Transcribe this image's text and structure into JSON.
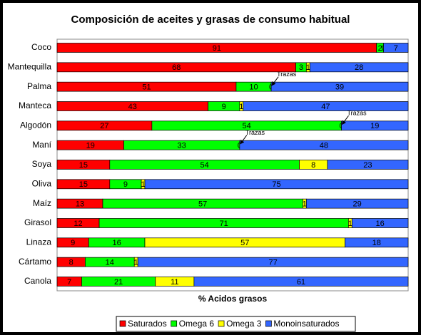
{
  "chart_data": {
    "type": "stacked-bar-horizontal",
    "title": "Composición de aceites y grasas de consumo habitual",
    "x_label": "% Acidos grasos",
    "categories": [
      "Coco",
      "Mantequilla",
      "Palma",
      "Manteca",
      "Algodón",
      "Maní",
      "Soya",
      "Oliva",
      "Maíz",
      "Girasol",
      "Linaza",
      "Cártamo",
      "Canola"
    ],
    "series": [
      {
        "name": "Saturados",
        "color": "#ff0000",
        "values": [
          91,
          68,
          51,
          43,
          27,
          19,
          15,
          15,
          13,
          12,
          9,
          8,
          7
        ]
      },
      {
        "name": "Omega 6",
        "color": "#00ff00",
        "values": [
          2,
          3,
          10,
          9,
          54,
          33,
          54,
          9,
          57,
          71,
          16,
          14,
          21
        ]
      },
      {
        "name": "Omega 3",
        "color": "#ffff00",
        "values": [
          0,
          1,
          0,
          1,
          0,
          0,
          8,
          1,
          1,
          1,
          57,
          1,
          11
        ]
      },
      {
        "name": "Monoinsaturados",
        "color": "#3366ff",
        "values": [
          7,
          28,
          39,
          47,
          19,
          48,
          23,
          75,
          29,
          16,
          18,
          77,
          61
        ]
      }
    ],
    "xlim": [
      0,
      100
    ],
    "annotations": [
      {
        "text": "Trazas",
        "category": "Palma"
      },
      {
        "text": "Trazas",
        "category": "Algodón"
      },
      {
        "text": "Trazas",
        "category": "Maní"
      }
    ]
  }
}
